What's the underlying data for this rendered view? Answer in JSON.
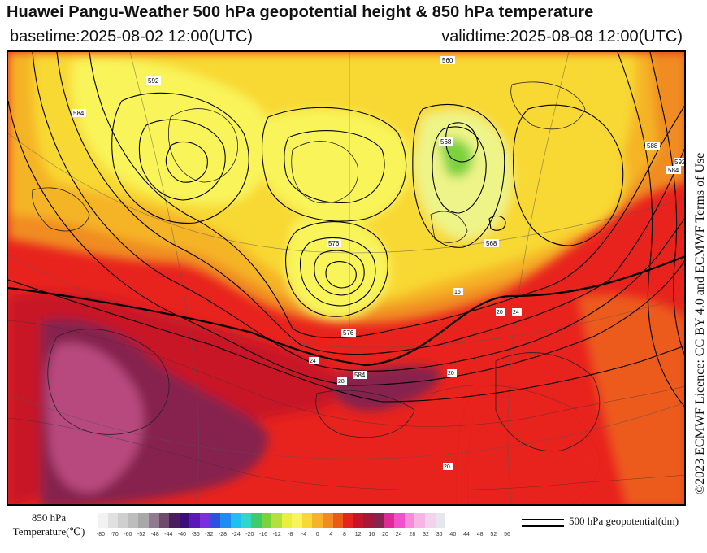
{
  "header": {
    "title": "Huawei Pangu-Weather 500 hPa geopotential height & 850 hPa temperature",
    "basetime": "basetime:2025-08-02 12:00(UTC)",
    "validtime": "validtime:2025-08-08 12:00(UTC)"
  },
  "license": "©2023 ECMWF Licence: CC BY 4.0 and ECMWF Terms of Use",
  "colorbar": {
    "label_line1": "850 hPa",
    "label_line2": "Temperature(℃)",
    "ticks": [
      "-80",
      "-70",
      "-60",
      "-52",
      "-48",
      "-44",
      "-40",
      "-36",
      "-32",
      "-28",
      "-24",
      "-20",
      "-16",
      "-12",
      "-8",
      "-4",
      "0",
      "4",
      "8",
      "12",
      "16",
      "20",
      "24",
      "28",
      "32",
      "36",
      "40",
      "44",
      "48",
      "52",
      "56"
    ],
    "colors": [
      "#f2f2f2",
      "#e0e0e0",
      "#cfcfcf",
      "#bdbdbd",
      "#a8a8a8",
      "#8f7a8f",
      "#6e4a6e",
      "#4b1d5c",
      "#3a0f7a",
      "#5a18b8",
      "#7a2ee0",
      "#2e4fe0",
      "#1e8cf0",
      "#1ec0f0",
      "#2ed8c8",
      "#3ccc6e",
      "#7ad23c",
      "#b4e03c",
      "#e8f03c",
      "#f8f45a",
      "#f8d832",
      "#f5b428",
      "#f08c20",
      "#ec5a1a",
      "#e8231e",
      "#c81428",
      "#a8163c",
      "#86234e",
      "#e02896",
      "#f050c8",
      "#f48cd8",
      "#f8b4e4",
      "#f5d2ec",
      "#e6e6f0"
    ]
  },
  "legend": {
    "label": "500 hPa geopotential(dm)"
  },
  "map": {
    "contour_labels": [
      "560",
      "568",
      "576",
      "584",
      "592",
      "584",
      "576",
      "568",
      "560",
      "584",
      "588",
      "592",
      "584",
      "576",
      "560"
    ],
    "temperature_labels": [
      "20",
      "24",
      "16",
      "20",
      "28",
      "24",
      "20",
      "12",
      "16",
      "20",
      "24",
      "28"
    ]
  }
}
